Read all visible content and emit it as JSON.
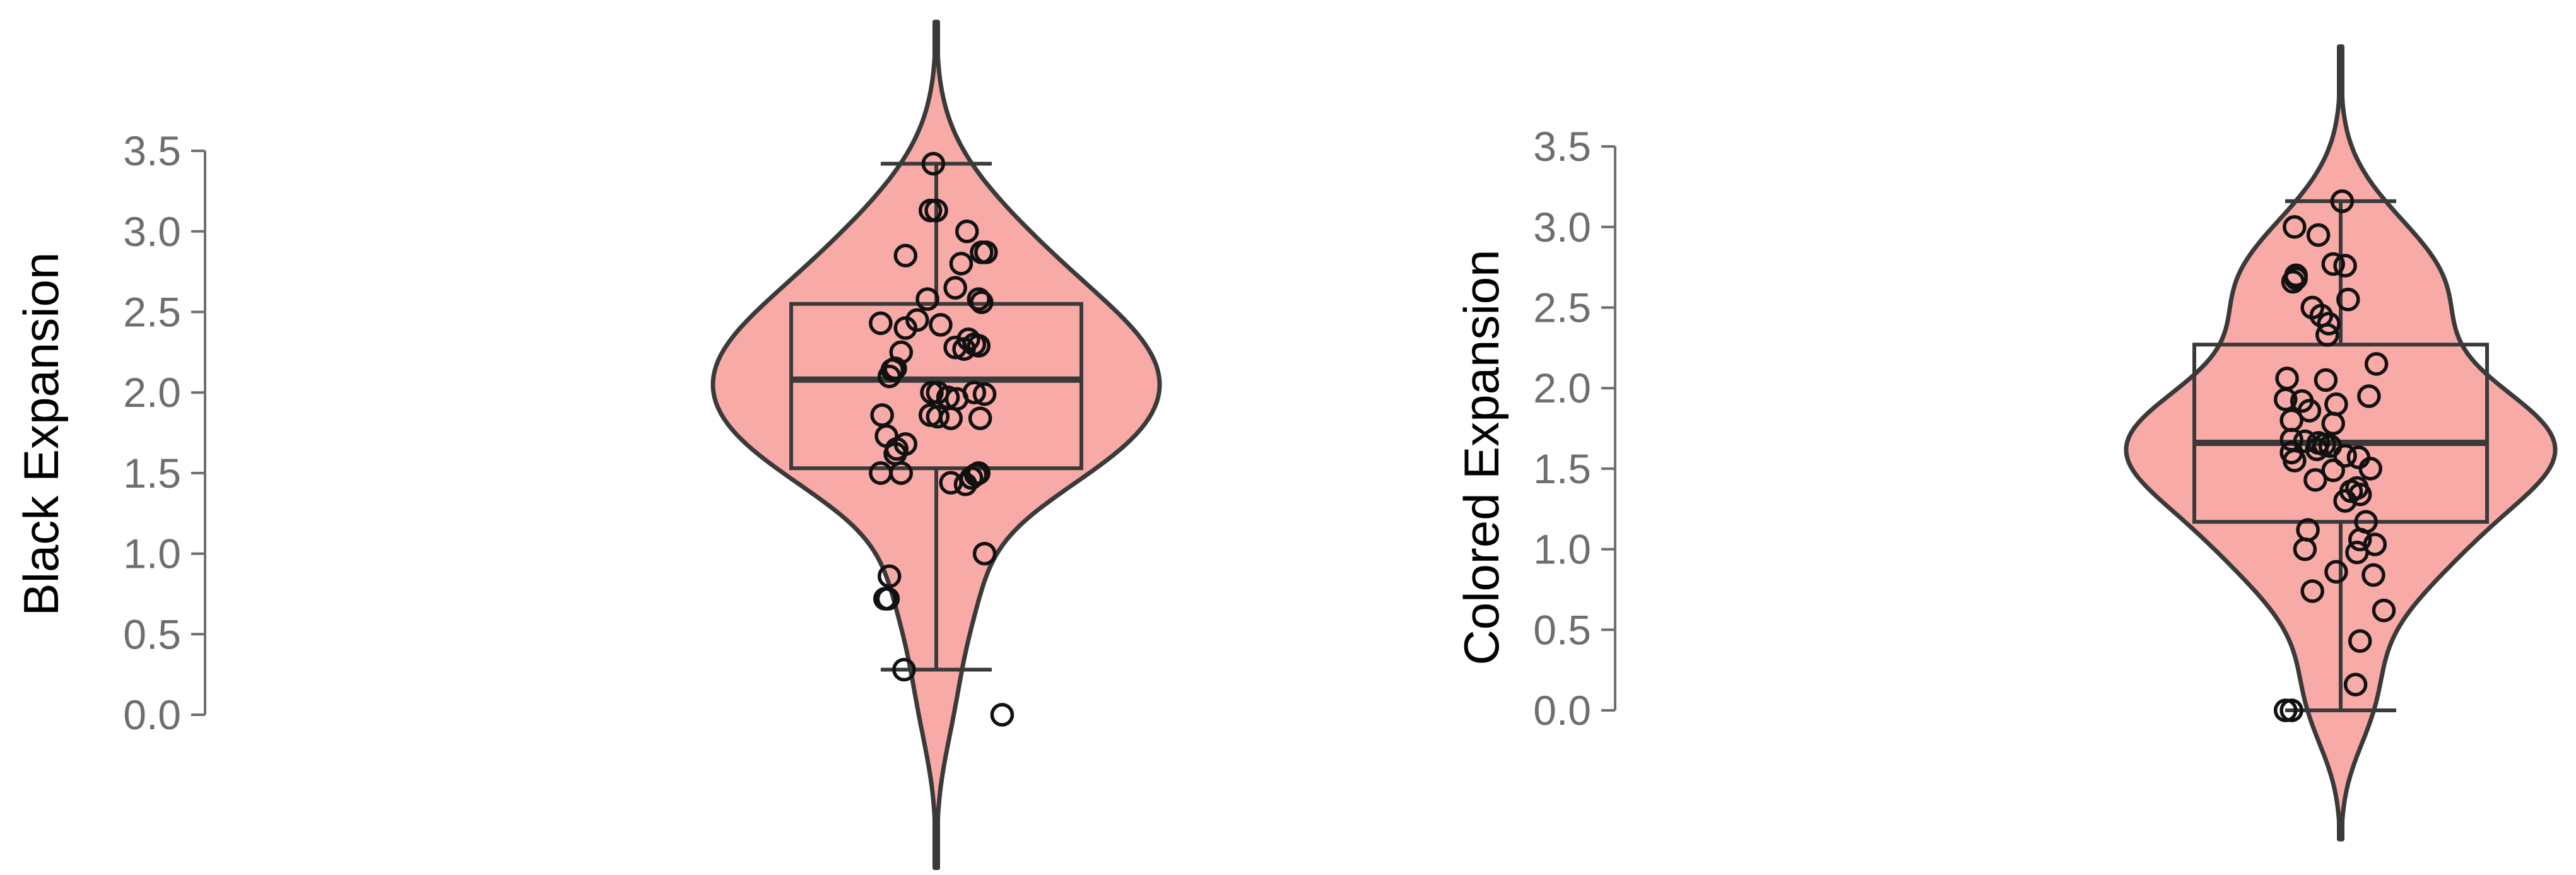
{
  "colors": {
    "violin_fill": "#F8AAA6",
    "stroke": "#3A3A3A",
    "axis_text": "#6E6E6E",
    "title_text": "#000000"
  },
  "chart_data": [
    {
      "type": "violin",
      "ylabel": "Black Expansion",
      "ylim": [
        0,
        3.5
      ],
      "yticks": [
        "0.0",
        "0.5",
        "1.0",
        "1.5",
        "2.0",
        "2.5",
        "3.0",
        "3.5"
      ],
      "grid": false,
      "boxplot": {
        "whisker_low": 0.28,
        "q1": 1.53,
        "median": 2.08,
        "q3": 2.55,
        "whisker_high": 3.42
      },
      "violin_range": [
        -0.95,
        4.3
      ],
      "points": [
        [
          -0.02,
          3.42
        ],
        [
          -0.04,
          3.13
        ],
        [
          0.0,
          3.13
        ],
        [
          0.21,
          3.0
        ],
        [
          0.31,
          2.87
        ],
        [
          0.34,
          2.87
        ],
        [
          -0.21,
          2.85
        ],
        [
          0.17,
          2.8
        ],
        [
          0.13,
          2.65
        ],
        [
          -0.06,
          2.58
        ],
        [
          0.29,
          2.58
        ],
        [
          0.31,
          2.56
        ],
        [
          -0.13,
          2.45
        ],
        [
          -0.38,
          2.43
        ],
        [
          0.03,
          2.42
        ],
        [
          -0.21,
          2.4
        ],
        [
          0.22,
          2.33
        ],
        [
          0.26,
          2.3
        ],
        [
          0.29,
          2.29
        ],
        [
          0.13,
          2.28
        ],
        [
          0.19,
          2.27
        ],
        [
          -0.24,
          2.25
        ],
        [
          -0.28,
          2.15
        ],
        [
          -0.3,
          2.14
        ],
        [
          -0.32,
          2.1
        ],
        [
          -0.03,
          2.0
        ],
        [
          0.01,
          2.0
        ],
        [
          0.26,
          2.0
        ],
        [
          0.33,
          1.99
        ],
        [
          0.08,
          1.97
        ],
        [
          0.14,
          1.96
        ],
        [
          -0.37,
          1.86
        ],
        [
          -0.04,
          1.86
        ],
        [
          0.01,
          1.85
        ],
        [
          0.1,
          1.84
        ],
        [
          0.3,
          1.84
        ],
        [
          -0.34,
          1.73
        ],
        [
          -0.21,
          1.68
        ],
        [
          -0.27,
          1.65
        ],
        [
          -0.28,
          1.62
        ],
        [
          -0.38,
          1.5
        ],
        [
          -0.24,
          1.5
        ],
        [
          0.29,
          1.5
        ],
        [
          0.27,
          1.49
        ],
        [
          0.24,
          1.47
        ],
        [
          0.1,
          1.44
        ],
        [
          0.2,
          1.43
        ],
        [
          0.33,
          1.0
        ],
        [
          -0.32,
          0.86
        ],
        [
          -0.33,
          0.72
        ],
        [
          -0.35,
          0.72
        ],
        [
          -0.22,
          0.28
        ],
        [
          0.45,
          0.0
        ]
      ]
    },
    {
      "type": "violin",
      "ylabel": "Colored Expansion",
      "ylim": [
        0,
        3.5
      ],
      "yticks": [
        "0.0",
        "0.5",
        "1.0",
        "1.5",
        "2.0",
        "2.5",
        "3.0",
        "3.5"
      ],
      "grid": false,
      "boxplot": {
        "whisker_low": 0.0,
        "q1": 1.17,
        "median": 1.66,
        "q3": 2.27,
        "whisker_high": 3.16
      },
      "violin_range": [
        -0.8,
        4.12
      ],
      "points": [
        [
          0.01,
          3.16
        ],
        [
          -0.31,
          3.0
        ],
        [
          -0.15,
          2.95
        ],
        [
          -0.05,
          2.77
        ],
        [
          0.03,
          2.76
        ],
        [
          -0.3,
          2.7
        ],
        [
          -0.3,
          2.68
        ],
        [
          -0.32,
          2.66
        ],
        [
          0.05,
          2.55
        ],
        [
          -0.19,
          2.5
        ],
        [
          -0.13,
          2.45
        ],
        [
          -0.08,
          2.4
        ],
        [
          -0.09,
          2.33
        ],
        [
          0.24,
          2.15
        ],
        [
          -0.36,
          2.06
        ],
        [
          -0.1,
          2.05
        ],
        [
          0.19,
          1.95
        ],
        [
          -0.37,
          1.93
        ],
        [
          -0.26,
          1.92
        ],
        [
          -0.03,
          1.9
        ],
        [
          -0.21,
          1.86
        ],
        [
          -0.33,
          1.8
        ],
        [
          -0.05,
          1.78
        ],
        [
          -0.33,
          1.68
        ],
        [
          -0.24,
          1.67
        ],
        [
          -0.15,
          1.66
        ],
        [
          -0.11,
          1.65
        ],
        [
          -0.07,
          1.64
        ],
        [
          -0.16,
          1.62
        ],
        [
          -0.33,
          1.6
        ],
        [
          0.03,
          1.58
        ],
        [
          0.12,
          1.57
        ],
        [
          -0.31,
          1.55
        ],
        [
          0.2,
          1.5
        ],
        [
          -0.05,
          1.49
        ],
        [
          -0.17,
          1.43
        ],
        [
          0.11,
          1.38
        ],
        [
          0.07,
          1.36
        ],
        [
          0.13,
          1.34
        ],
        [
          0.03,
          1.3
        ],
        [
          0.17,
          1.17
        ],
        [
          -0.22,
          1.12
        ],
        [
          0.13,
          1.06
        ],
        [
          0.23,
          1.03
        ],
        [
          -0.24,
          1.0
        ],
        [
          0.11,
          0.98
        ],
        [
          -0.03,
          0.86
        ],
        [
          0.22,
          0.84
        ],
        [
          -0.19,
          0.74
        ],
        [
          0.29,
          0.62
        ],
        [
          0.13,
          0.43
        ],
        [
          0.1,
          0.16
        ],
        [
          -0.37,
          0.0
        ],
        [
          -0.33,
          0.0
        ]
      ]
    }
  ]
}
